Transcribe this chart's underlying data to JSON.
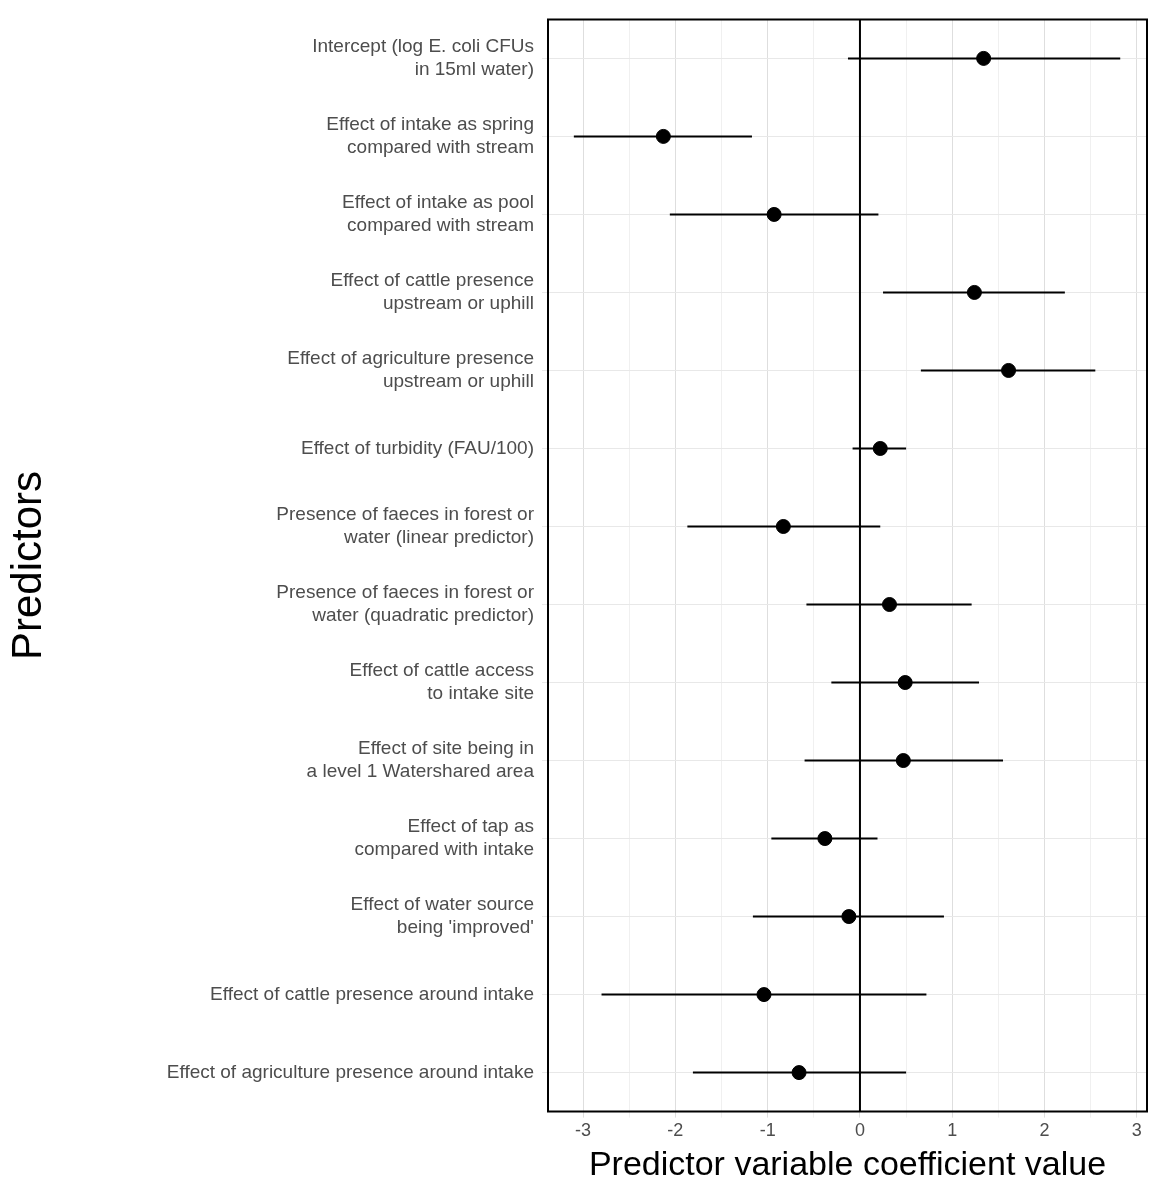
{
  "chart_data": {
    "type": "scatter",
    "orientation": "horizontal",
    "xlabel": "Predictor variable coefficient value",
    "ylabel": "Predictors",
    "categories": [
      "Intercept (log E. coli CFUs\nin 15ml water)",
      "Effect of intake as spring\ncompared with stream",
      "Effect of intake as pool\ncompared with stream",
      "Effect of cattle presence\nupstream or uphill",
      "Effect of agriculture presence\nupstream or uphill",
      "Effect of turbidity (FAU/100)",
      "Presence of faeces in forest or\nwater (linear predictor)",
      "Presence of faeces in forest or\nwater (quadratic predictor)",
      "Effect of cattle access\nto intake site",
      "Effect of site being in\na level 1 Watershared area",
      "Effect of tap as\ncompared with intake",
      "Effect of water source\nbeing 'improved'",
      "Effect of cattle presence around intake",
      "Effect of agriculture presence around intake"
    ],
    "values": [
      1.34,
      -2.13,
      -0.93,
      1.24,
      1.61,
      0.22,
      -0.83,
      0.32,
      0.49,
      0.47,
      -0.38,
      -0.12,
      -1.04,
      -0.66
    ],
    "errors": [
      [
        -0.13,
        2.82
      ],
      [
        -3.1,
        -1.17
      ],
      [
        -2.06,
        0.2
      ],
      [
        0.25,
        2.22
      ],
      [
        0.66,
        2.55
      ],
      [
        -0.08,
        0.5
      ],
      [
        -1.87,
        0.22
      ],
      [
        -0.58,
        1.21
      ],
      [
        -0.31,
        1.29
      ],
      [
        -0.6,
        1.55
      ],
      [
        -0.96,
        0.19
      ],
      [
        -1.16,
        0.91
      ],
      [
        -2.8,
        0.72
      ],
      [
        -1.81,
        0.5
      ]
    ],
    "color": "#000000",
    "marker": "circle",
    "xlim": [
      -3.38,
      3.11
    ],
    "xticks": [
      -3,
      {
        "value": -2.5,
        "label": null
      },
      -2,
      {
        "value": -1.5,
        "label": null
      },
      -1,
      {
        "value": -0.5,
        "label": null
      },
      0,
      {
        "value": 0.5,
        "label": null
      },
      1,
      {
        "value": 1.5,
        "label": null
      },
      2,
      {
        "value": 2.5,
        "label": null
      },
      3
    ],
    "ref_lines": [
      {
        "axis": "x",
        "value": 0,
        "color": "#000000"
      }
    ],
    "grid": true,
    "legend": false
  }
}
